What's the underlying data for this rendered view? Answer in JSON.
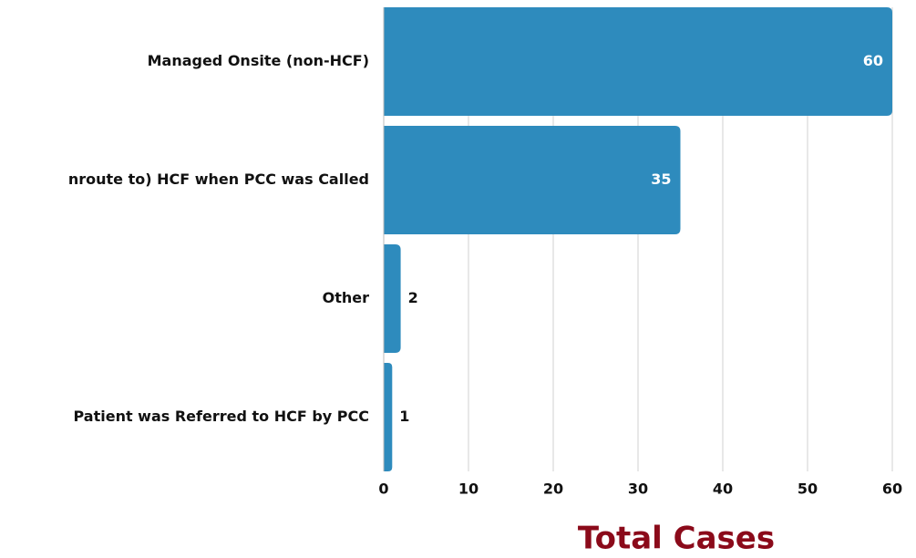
{
  "chart_data": {
    "type": "bar",
    "orientation": "horizontal",
    "x_label": "Total Cases",
    "categories": [
      "Managed Onsite (non-HCF)",
      "nroute to) HCF when PCC was Called",
      "Other",
      "Patient was Referred to HCF by PCC"
    ],
    "values": [
      60,
      35,
      2,
      1
    ],
    "color": "#2e8bbd",
    "xlim": [
      0,
      60
    ],
    "xticks": [
      0,
      10,
      20,
      30,
      40,
      50,
      60
    ],
    "grid": true
  }
}
